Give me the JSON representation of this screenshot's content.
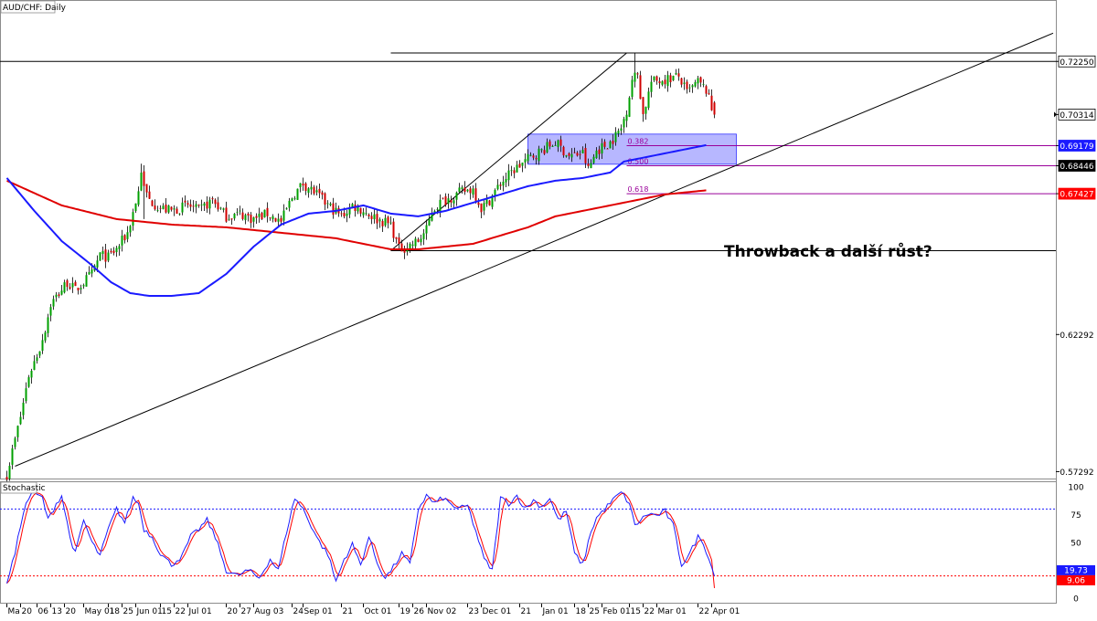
{
  "chart_data": {
    "type": "candlestick",
    "title": "AUD/CHF: Daily",
    "annotation": "Throwback a další růst?",
    "main_axis": {
      "ylim": [
        0.5704,
        0.7449
      ],
      "tick_labels": [
        "0.72250",
        "0.70314",
        "0.69179",
        "0.68446",
        "0.67427",
        "0.62292",
        "0.57292"
      ],
      "highlighted_prices": [
        {
          "label": "0.72250",
          "value": 0.7225,
          "bg": "#ffffff",
          "fg": "#000000"
        },
        {
          "label": "0.70314",
          "value": 0.70314,
          "bg": "#ffffff",
          "fg": "#000000"
        },
        {
          "label": "0.69179",
          "value": 0.69179,
          "bg": "#1a1aff",
          "fg": "#ffffff"
        },
        {
          "label": "0.68446",
          "value": 0.68446,
          "bg": "#000000",
          "fg": "#ffffff"
        },
        {
          "label": "0.67427",
          "value": 0.67427,
          "bg": "#ff0000",
          "fg": "#ffffff"
        }
      ],
      "plain_ticks": [
        {
          "label": "0.62292",
          "value": 0.62292
        },
        {
          "label": "0.57292",
          "value": 0.57292
        }
      ]
    },
    "x_axis": {
      "tick_labels": [
        "Ma",
        "20",
        "06",
        "13",
        "20",
        "May 01",
        "18",
        "25",
        "Jun 01",
        "15",
        "22",
        "Jul 01",
        "20",
        "27",
        "Aug 03",
        "24",
        "Sep 01",
        "21",
        "Oct 01",
        "19",
        "26",
        "Nov 02",
        "23",
        "Dec 01",
        "21",
        "Jan 01",
        "18",
        "25",
        "Feb 01",
        "15",
        "22",
        "Mar 01",
        "22",
        "Apr 01"
      ],
      "tick_index": [
        0,
        5,
        11,
        16,
        21,
        28,
        37,
        42,
        47,
        56,
        61,
        66,
        80,
        85,
        90,
        104,
        108,
        122,
        130,
        143,
        148,
        153,
        168,
        173,
        187,
        195,
        207,
        212,
        217,
        227,
        232,
        237,
        252,
        257
      ]
    },
    "fibonacci": [
      {
        "label": "0.382",
        "value": 0.69179
      },
      {
        "label": "0.500",
        "value": 0.68446
      },
      {
        "label": "0.618",
        "value": 0.67427
      }
    ],
    "horizontal_levels": [
      0.7225,
      0.7256,
      0.6535
    ],
    "candles": [],
    "sma_blue": [],
    "sma_red": [],
    "stochastic": {
      "label": "Stochastic",
      "ylim": [
        0,
        100
      ],
      "tick_labels": [
        "100",
        "75",
        "50",
        "25",
        "0"
      ],
      "levels": [
        80,
        20
      ],
      "k_last": "19.73",
      "d_last": "9.06",
      "k_color": "#1a1aff",
      "d_color": "#ff0000"
    },
    "colors": {
      "up": "#00a000",
      "down": "#d00000",
      "sma_blue": "#1a1aff",
      "sma_red": "#e00000",
      "fib_line": "#9a009a",
      "zone": "#7b7bff"
    }
  }
}
